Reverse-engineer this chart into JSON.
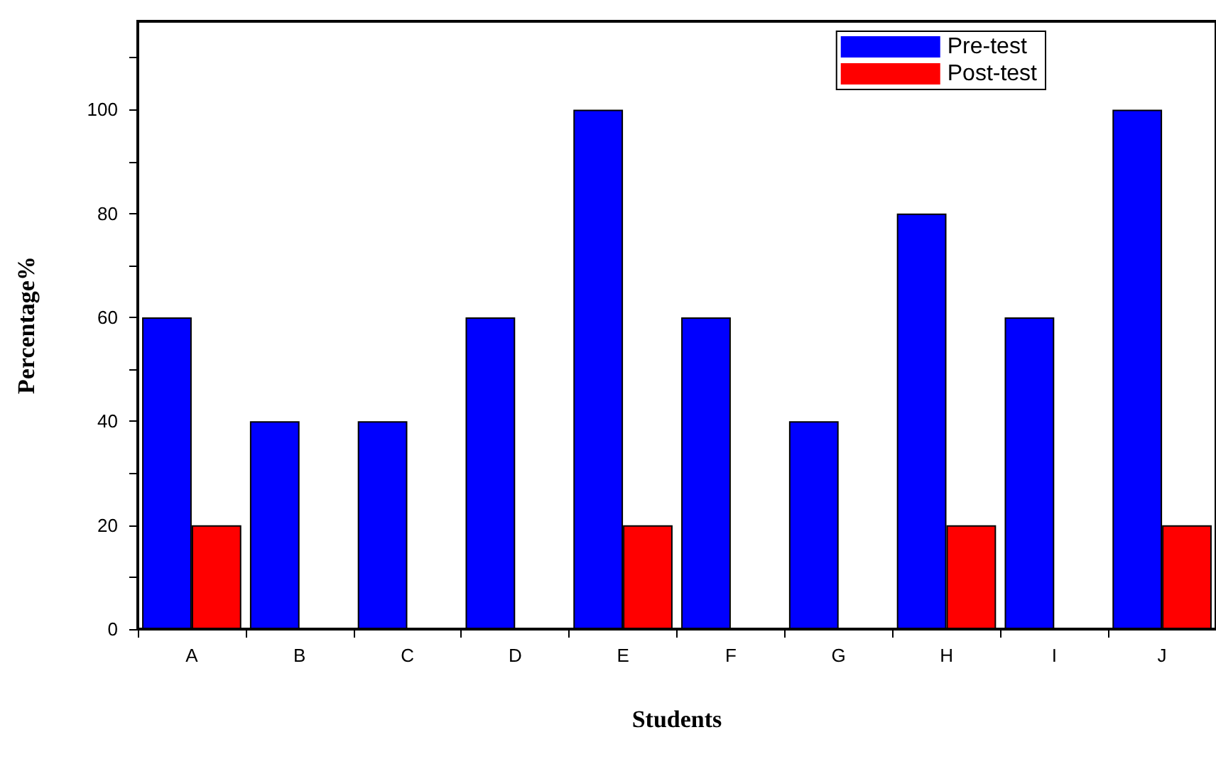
{
  "chart_data": {
    "type": "bar",
    "xlabel": "Students",
    "ylabel": "Percentage%",
    "categories": [
      "A",
      "B",
      "C",
      "D",
      "E",
      "F",
      "G",
      "H",
      "I",
      "J"
    ],
    "series": [
      {
        "name": "Pre-test",
        "color": "#0000ff",
        "values": [
          60,
          40,
          40,
          60,
          100,
          60,
          40,
          80,
          60,
          100
        ]
      },
      {
        "name": "Post-test",
        "color": "#ff0000",
        "values": [
          20,
          0,
          0,
          0,
          20,
          0,
          0,
          20,
          0,
          20
        ]
      }
    ],
    "ylim": [
      0,
      117
    ],
    "yticks": [
      0,
      {
        "value": 10,
        "label": null
      },
      20,
      {
        "value": 30,
        "label": null
      },
      40,
      {
        "value": 50,
        "label": null
      },
      60,
      {
        "value": 70,
        "label": null
      },
      80,
      {
        "value": 90,
        "label": null
      },
      100,
      {
        "value": 110,
        "label": null
      }
    ],
    "grid": false,
    "legend": "top right"
  }
}
